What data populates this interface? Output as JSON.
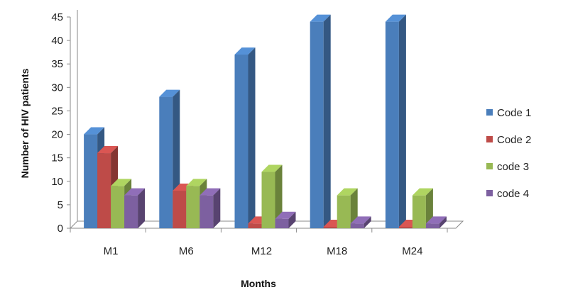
{
  "chart_data": {
    "type": "bar",
    "title": "",
    "xlabel": "Months",
    "ylabel": "Number of HIV patients",
    "categories": [
      "M1",
      "M6",
      "M12",
      "M18",
      "M24"
    ],
    "series": [
      {
        "name": "Code 1",
        "values": [
          20,
          28,
          37,
          44,
          44
        ],
        "color": "#4a7ebb"
      },
      {
        "name": "Code 2",
        "values": [
          16,
          8,
          1,
          0.3,
          0.3
        ],
        "color": "#be4b48"
      },
      {
        "name": "code 3",
        "values": [
          9,
          9,
          12,
          7,
          7
        ],
        "color": "#98b954"
      },
      {
        "name": "code 4",
        "values": [
          7,
          7,
          2,
          1,
          1
        ],
        "color": "#7d60a0"
      }
    ],
    "ylim": [
      0,
      45
    ],
    "yticks": [
      0,
      5,
      10,
      15,
      20,
      25,
      30,
      35,
      40,
      45
    ],
    "grid": false,
    "legend_position": "right",
    "three_d": true
  }
}
